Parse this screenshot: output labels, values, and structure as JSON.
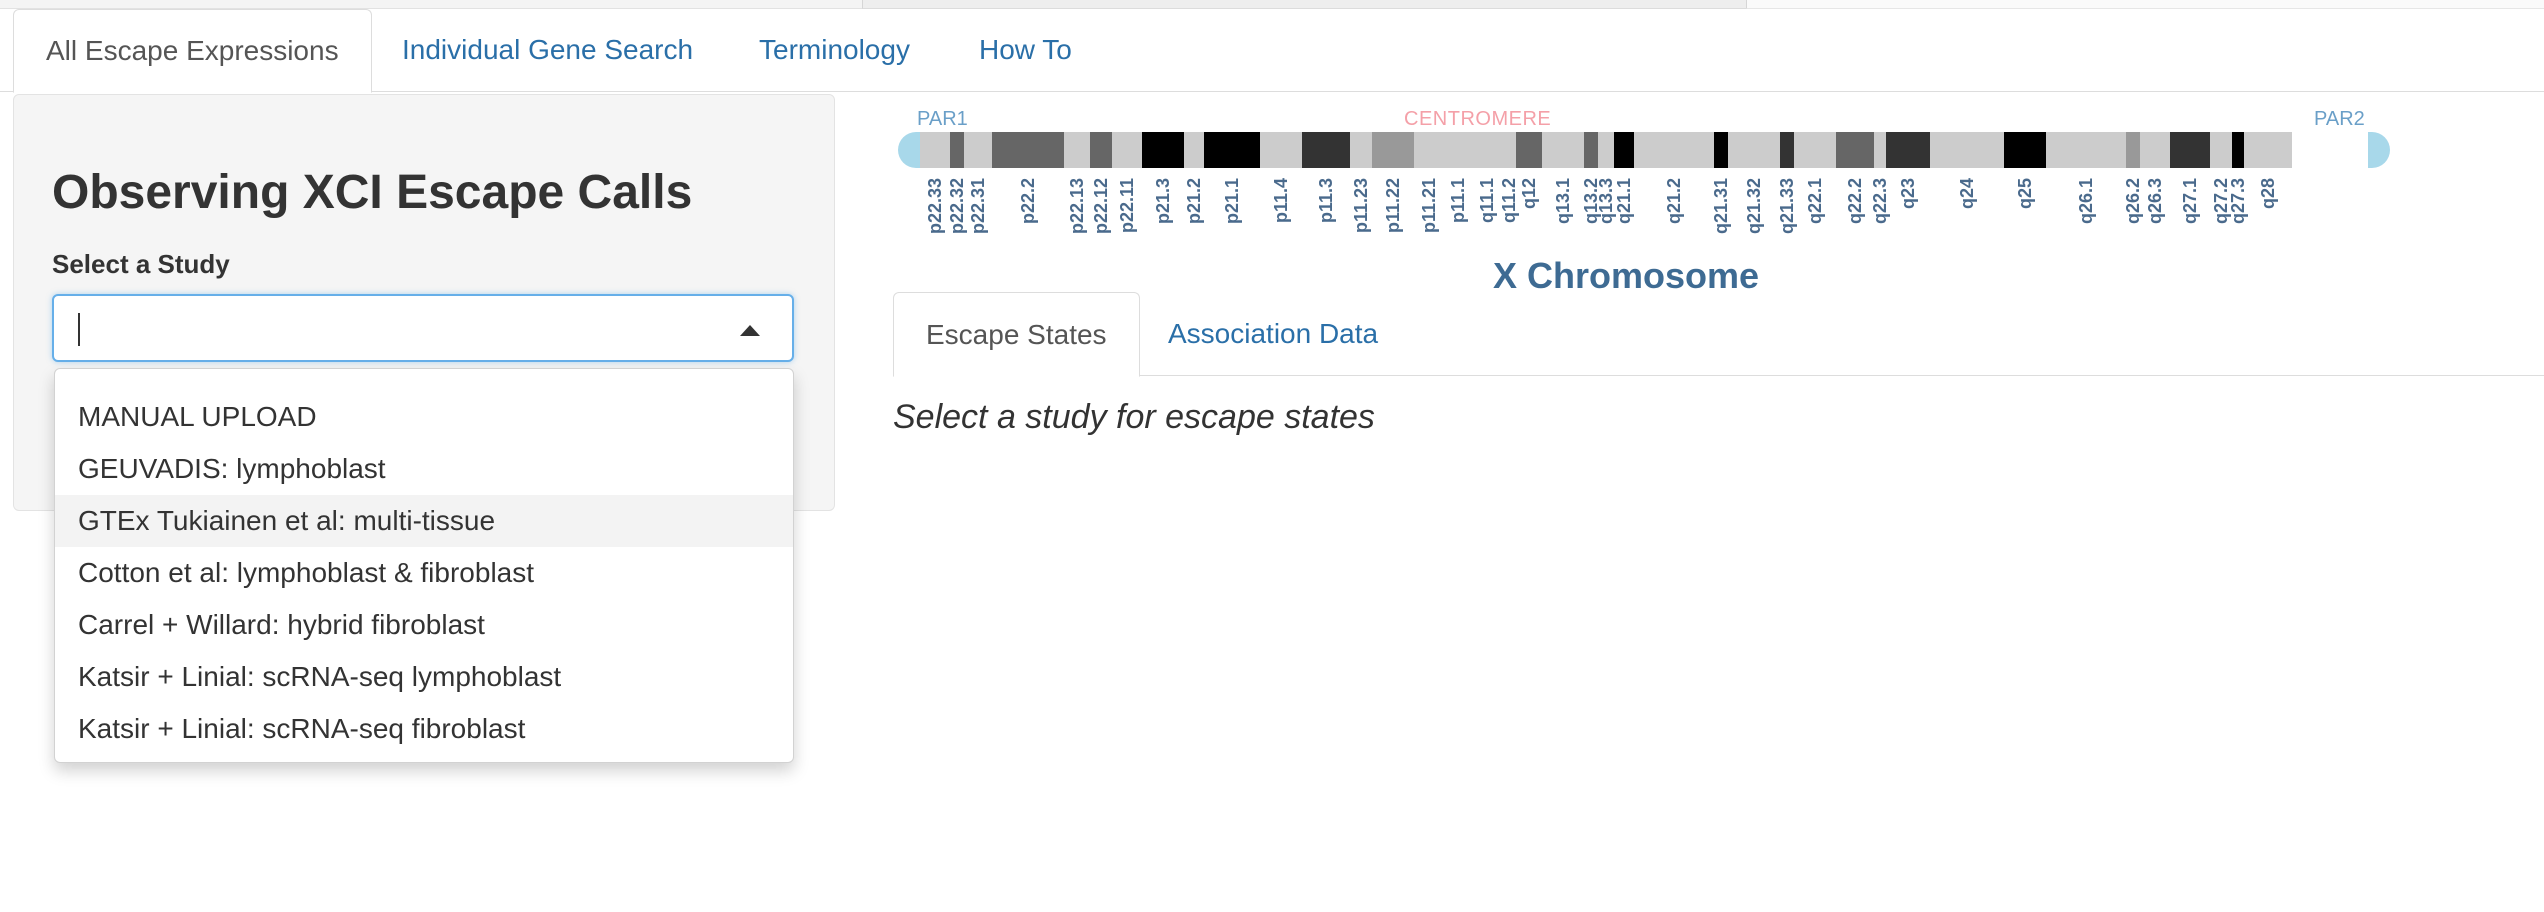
{
  "nav": {
    "tabs": [
      {
        "label": "All Escape Expressions",
        "active": true
      },
      {
        "label": "Individual Gene Search",
        "active": false
      },
      {
        "label": "Terminology",
        "active": false
      },
      {
        "label": "How To",
        "active": false
      }
    ]
  },
  "sidebar": {
    "title": "Observing XCI Escape Calls",
    "select_label": "Select a Study",
    "select_value": "",
    "options": [
      "MANUAL UPLOAD",
      "GEUVADIS: lymphoblast",
      "GTEx Tukiainen et al: multi-tissue",
      "Cotton et al: lymphoblast & fibroblast",
      "Carrel + Willard: hybrid fibroblast",
      "Katsir + Linial: scRNA-seq lymphoblast",
      "Katsir + Linial: scRNA-seq fibroblast"
    ],
    "highlighted_option": "GTEx Tukiainen et al: multi-tissue"
  },
  "ideogram": {
    "par1": "PAR1",
    "par2": "PAR2",
    "centromere": "CENTROMERE",
    "title": "X Chromosome",
    "bands": [
      {
        "name": "p22.33",
        "stain": "gneg"
      },
      {
        "name": "p22.32",
        "stain": "gpos50"
      },
      {
        "name": "p22.31",
        "stain": "gneg"
      },
      {
        "name": "p22.2",
        "stain": "gpos50"
      },
      {
        "name": "p22.13",
        "stain": "gneg"
      },
      {
        "name": "p22.12",
        "stain": "gpos50"
      },
      {
        "name": "p22.11",
        "stain": "gneg"
      },
      {
        "name": "p21.3",
        "stain": "gpos100"
      },
      {
        "name": "p21.2",
        "stain": "gneg"
      },
      {
        "name": "p21.1",
        "stain": "gpos100"
      },
      {
        "name": "p11.4",
        "stain": "gneg"
      },
      {
        "name": "p11.3",
        "stain": "gpos75"
      },
      {
        "name": "p11.23",
        "stain": "gneg"
      },
      {
        "name": "p11.22",
        "stain": "gpos25"
      },
      {
        "name": "p11.21",
        "stain": "gneg"
      },
      {
        "name": "p11.1",
        "stain": "acen"
      },
      {
        "name": "q11.1",
        "stain": "acen"
      },
      {
        "name": "q11.2",
        "stain": "gneg"
      },
      {
        "name": "q12",
        "stain": "gpos50"
      },
      {
        "name": "q13.1",
        "stain": "gneg"
      },
      {
        "name": "q13.2",
        "stain": "gpos50"
      },
      {
        "name": "q13.3",
        "stain": "gneg"
      },
      {
        "name": "q21.1",
        "stain": "gpos100"
      },
      {
        "name": "q21.2",
        "stain": "gneg"
      },
      {
        "name": "q21.31",
        "stain": "gpos100"
      },
      {
        "name": "q21.32",
        "stain": "gneg"
      },
      {
        "name": "q21.33",
        "stain": "gpos75"
      },
      {
        "name": "q22.1",
        "stain": "gneg"
      },
      {
        "name": "q22.2",
        "stain": "gpos50"
      },
      {
        "name": "q22.3",
        "stain": "gneg"
      },
      {
        "name": "q23",
        "stain": "gpos75"
      },
      {
        "name": "q24",
        "stain": "gneg"
      },
      {
        "name": "q25",
        "stain": "gpos100"
      },
      {
        "name": "q26.1",
        "stain": "gneg"
      },
      {
        "name": "q26.2",
        "stain": "gpos25"
      },
      {
        "name": "q26.3",
        "stain": "gneg"
      },
      {
        "name": "q27.1",
        "stain": "gpos75"
      },
      {
        "name": "q27.2",
        "stain": "gneg"
      },
      {
        "name": "q27.3",
        "stain": "gpos100"
      },
      {
        "name": "q28",
        "stain": "gneg"
      }
    ]
  },
  "results": {
    "tabs": [
      {
        "label": "Escape States",
        "active": true
      },
      {
        "label": "Association Data",
        "active": false
      }
    ],
    "message": "Select a study for escape states"
  },
  "colors": {
    "link": "#2a6fa8",
    "focus_border": "#66afe9",
    "telomere": "#a8d8ea",
    "centromere": "#ffc0cb",
    "gneg": "#cccccc",
    "gpos25": "#999999",
    "gpos50": "#666666",
    "gpos75": "#333333",
    "gpos100": "#000000"
  }
}
